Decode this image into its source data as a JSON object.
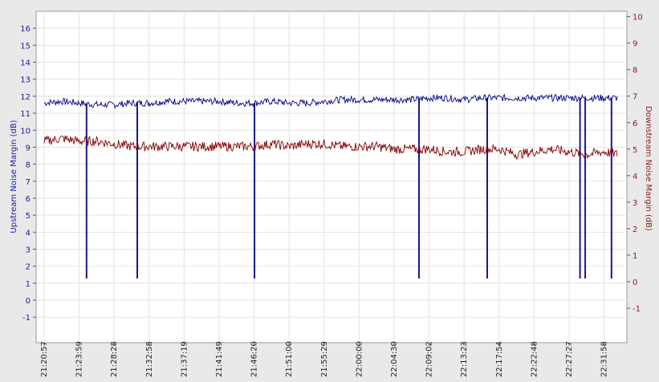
{
  "chart_data": {
    "type": "line",
    "title": "",
    "xlabel": "",
    "ylabel_left": "Upstream Noise Margin (dB)",
    "ylabel_right": "Downstream Noise Margin (dB)",
    "ylim_left": [
      -2.5,
      17
    ],
    "ylim_right": [
      -2.3,
      10.2
    ],
    "yticks_left": [
      -1,
      0,
      1,
      2,
      3,
      4,
      5,
      6,
      7,
      8,
      9,
      10,
      11,
      12,
      13,
      14,
      15,
      16
    ],
    "yticks_right": [
      -1,
      0,
      1,
      2,
      3,
      4,
      5,
      6,
      7,
      8,
      9,
      10
    ],
    "x_tick_labels": [
      "21:20:57",
      "21:23:59",
      "21:28:28",
      "21:32:58",
      "21:37:19",
      "21:41:49",
      "21:46:20",
      "21:51:00",
      "21:55:29",
      "22:00:00",
      "22:04:30",
      "22:09:02",
      "22:13:23",
      "22:17:54",
      "22:22:48",
      "22:27:27",
      "22:31:58"
    ],
    "grid": true,
    "series": [
      {
        "name": "",
        "axis": "left",
        "color": "#000080",
        "baseline": [
          [
            0,
            11.6
          ],
          [
            0.5,
            11.7
          ],
          [
            1,
            11.6
          ],
          [
            1.5,
            11.5
          ],
          [
            2,
            11.5
          ],
          [
            2.5,
            11.6
          ],
          [
            3,
            11.6
          ],
          [
            3.5,
            11.7
          ],
          [
            4,
            11.7
          ],
          [
            4.5,
            11.7
          ],
          [
            5,
            11.7
          ],
          [
            5.5,
            11.6
          ],
          [
            6,
            11.6
          ],
          [
            6.5,
            11.7
          ],
          [
            7,
            11.6
          ],
          [
            7.5,
            11.6
          ],
          [
            8,
            11.7
          ],
          [
            8.5,
            11.8
          ],
          [
            9,
            11.8
          ],
          [
            9.5,
            11.8
          ],
          [
            10,
            11.8
          ],
          [
            10.5,
            11.8
          ],
          [
            11,
            11.9
          ],
          [
            11.5,
            11.9
          ],
          [
            12,
            11.8
          ],
          [
            12.5,
            11.9
          ],
          [
            13,
            11.9
          ],
          [
            13.5,
            11.9
          ],
          [
            14,
            11.9
          ],
          [
            14.5,
            11.9
          ],
          [
            15,
            11.9
          ],
          [
            15.5,
            11.9
          ],
          [
            16,
            11.9
          ],
          [
            16.4,
            11.9
          ]
        ],
        "dropouts": [
          {
            "x": 1.2,
            "min": 1.3,
            "step": 6.5
          },
          {
            "x": 2.65,
            "min": 1.3,
            "step": 4.0
          },
          {
            "x": 6.0,
            "min": 1.3,
            "step": 6.5
          },
          {
            "x": 10.7,
            "min": 1.3,
            "step": 4.0
          },
          {
            "x": 12.65,
            "min": 1.3,
            "step": 6.5
          },
          {
            "x": 15.3,
            "min": 1.3,
            "step": 6.5
          },
          {
            "x": 15.45,
            "min": 1.3,
            "step": 4.0
          },
          {
            "x": 16.2,
            "min": 1.3,
            "step": 4.0
          }
        ],
        "noise": 0.2
      },
      {
        "name": "",
        "axis": "right",
        "color": "#800000",
        "baseline": [
          [
            0,
            5.3
          ],
          [
            0.5,
            5.4
          ],
          [
            1,
            5.3
          ],
          [
            1.5,
            5.3
          ],
          [
            2,
            5.2
          ],
          [
            2.5,
            5.1
          ],
          [
            3,
            5.1
          ],
          [
            3.5,
            5.1
          ],
          [
            4,
            5.1
          ],
          [
            4.5,
            5.1
          ],
          [
            5,
            5.1
          ],
          [
            5.5,
            5.1
          ],
          [
            6,
            5.1
          ],
          [
            6.5,
            5.2
          ],
          [
            7,
            5.1
          ],
          [
            7.5,
            5.2
          ],
          [
            8,
            5.2
          ],
          [
            8.5,
            5.1
          ],
          [
            9,
            5.1
          ],
          [
            9.5,
            5.1
          ],
          [
            10,
            5.0
          ],
          [
            10.5,
            5.0
          ],
          [
            11,
            5.0
          ],
          [
            11.5,
            4.9
          ],
          [
            12,
            4.9
          ],
          [
            12.5,
            5.0
          ],
          [
            13,
            5.0
          ],
          [
            13.5,
            4.8
          ],
          [
            14,
            4.9
          ],
          [
            14.5,
            5.0
          ],
          [
            15,
            4.9
          ],
          [
            15.5,
            4.8
          ],
          [
            16,
            4.9
          ],
          [
            16.4,
            4.8
          ]
        ],
        "noise": 0.18
      }
    ]
  }
}
